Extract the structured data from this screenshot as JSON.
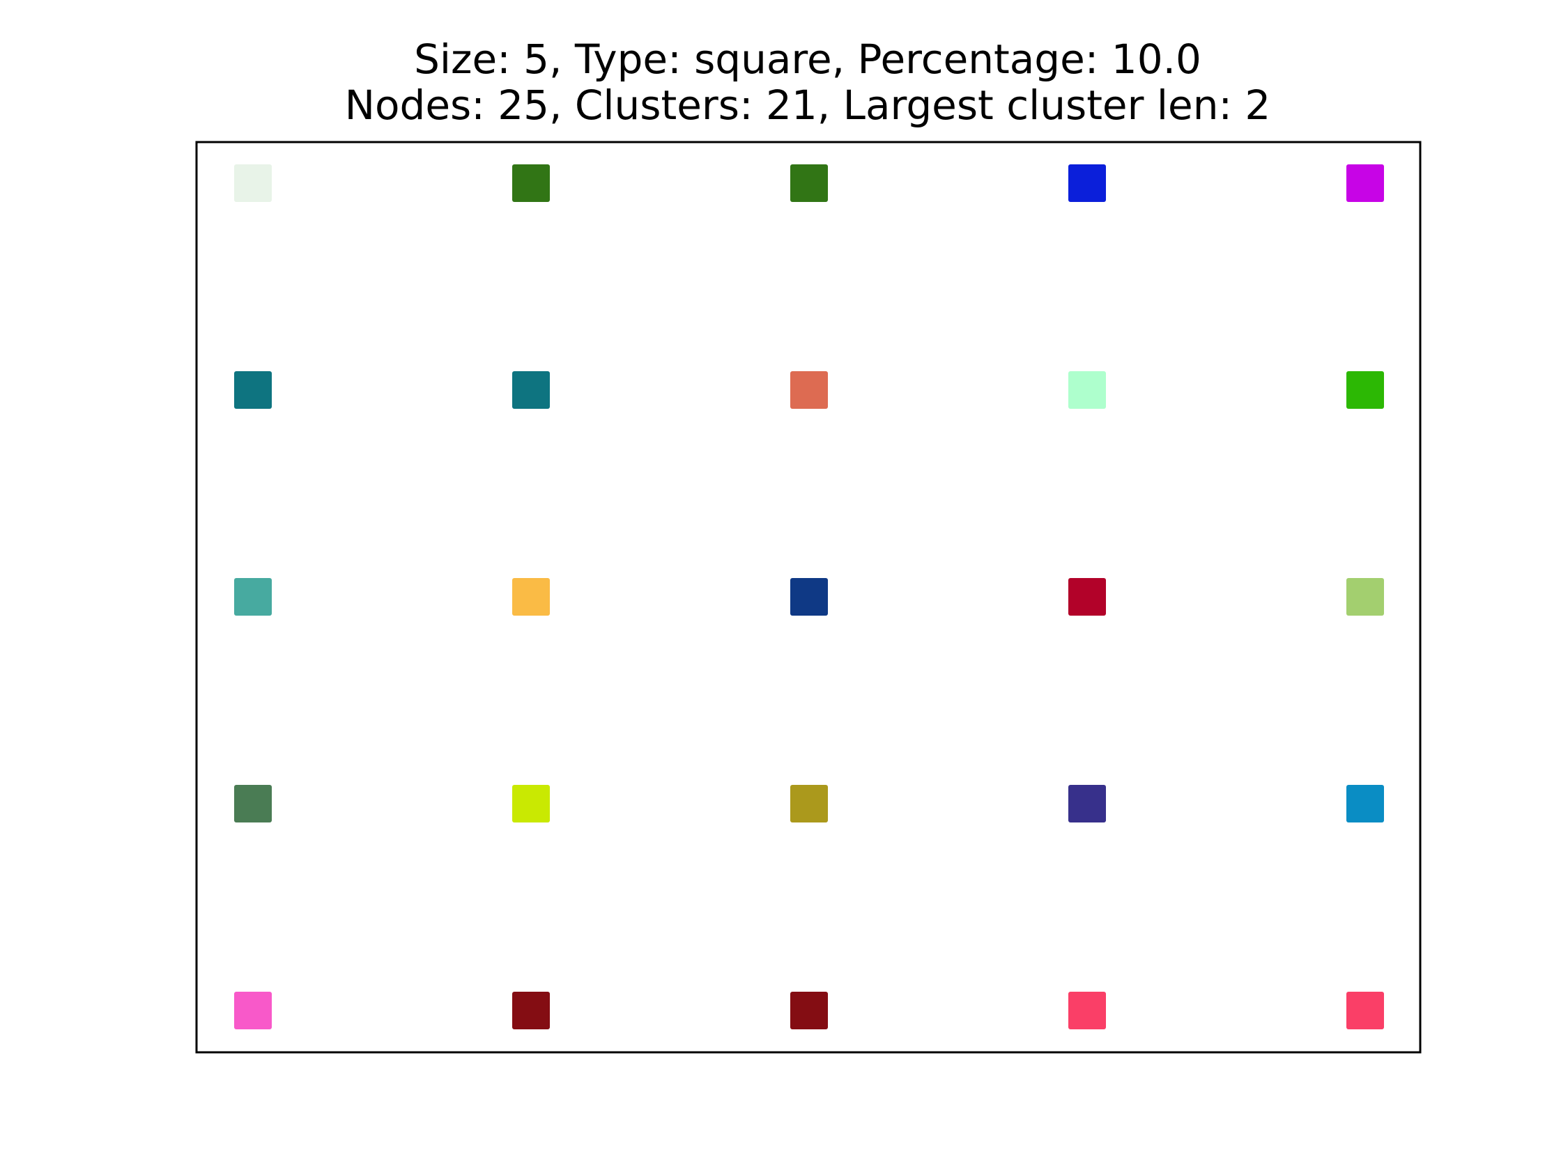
{
  "title": {
    "line1": "Size: 5, Type: square, Percentage: 10.0",
    "line2": "Nodes: 25, Clusters: 21, Largest cluster len: 2"
  },
  "grid": {
    "rows": 5,
    "cols": 5,
    "cell_colors": [
      [
        "#e8f3e8",
        "#317515",
        "#317515",
        "#0b1fda",
        "#c704e6"
      ],
      [
        "#0e7480",
        "#0e7480",
        "#dd6b52",
        "#aeffcd",
        "#2cb804"
      ],
      [
        "#47aaa0",
        "#fabb45",
        "#0f3985",
        "#b20229",
        "#a3cf6f"
      ],
      [
        "#4a7c54",
        "#c9e902",
        "#ab991c",
        "#37308b",
        "#0a8dc4"
      ],
      [
        "#f859c9",
        "#840d13",
        "#840d13",
        "#fa3f67",
        "#fa3f67"
      ]
    ]
  }
}
